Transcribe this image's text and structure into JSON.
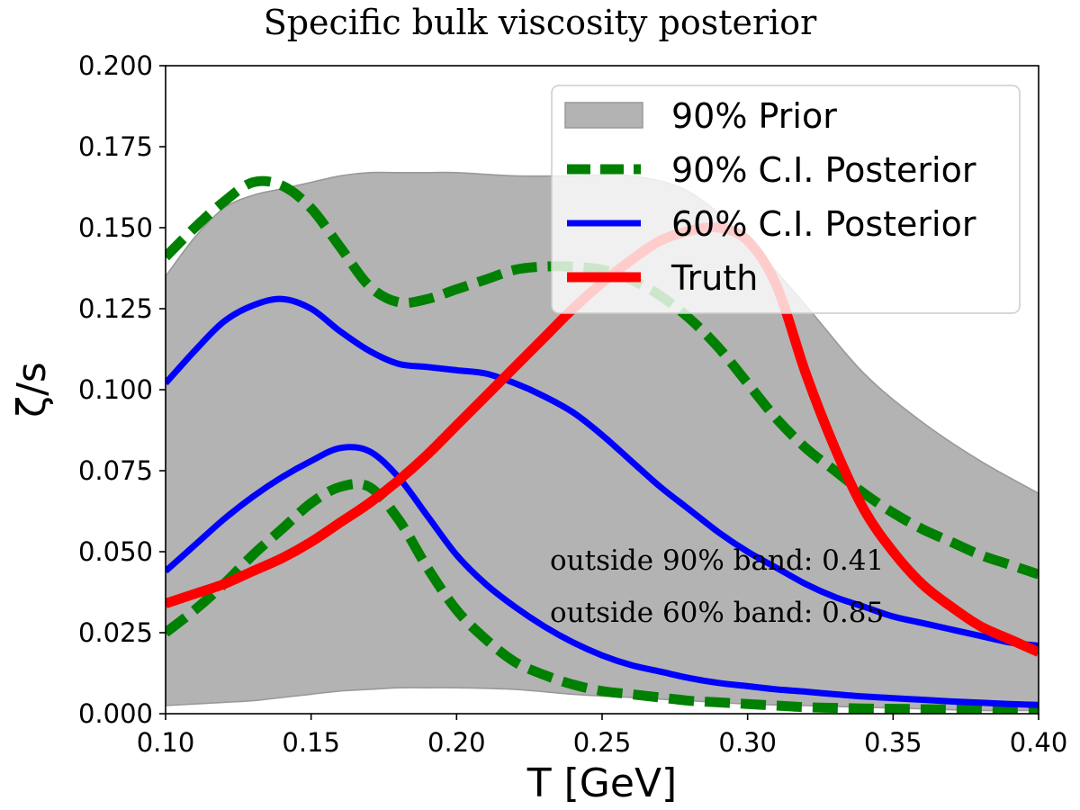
{
  "chart_data": {
    "type": "line",
    "title": "Specific bulk viscosity posterior",
    "xlabel": "T [GeV]",
    "ylabel": "ζ/s",
    "xlim": [
      0.1,
      0.4
    ],
    "ylim": [
      0.0,
      0.2
    ],
    "x_ticks": [
      "0.10",
      "0.15",
      "0.20",
      "0.25",
      "0.30",
      "0.35",
      "0.40"
    ],
    "y_ticks": [
      "0.000",
      "0.025",
      "0.050",
      "0.075",
      "0.100",
      "0.125",
      "0.150",
      "0.175",
      "0.200"
    ],
    "grid": false,
    "legend_position": "top-right",
    "legend": [
      "90% Prior",
      "90% C.I. Posterior",
      "60% C.I. Posterior",
      "Truth"
    ],
    "colors": {
      "prior_fill": "#b3b3b3",
      "prior_edge": "#999999",
      "ci90": "#008000",
      "ci60": "#0000ff",
      "truth": "#ff0000"
    },
    "prior_band": {
      "x": [
        0.1,
        0.11,
        0.12,
        0.13,
        0.14,
        0.15,
        0.16,
        0.17,
        0.18,
        0.19,
        0.2,
        0.22,
        0.24,
        0.26,
        0.28,
        0.3,
        0.32,
        0.34,
        0.36,
        0.38,
        0.4
      ],
      "upper": [
        0.135,
        0.147,
        0.156,
        0.16,
        0.162,
        0.164,
        0.166,
        0.167,
        0.167,
        0.167,
        0.167,
        0.166,
        0.166,
        0.166,
        0.161,
        0.146,
        0.126,
        0.105,
        0.09,
        0.078,
        0.068
      ],
      "lower": [
        0.0025,
        0.003,
        0.0035,
        0.004,
        0.005,
        0.006,
        0.007,
        0.0075,
        0.008,
        0.008,
        0.008,
        0.0075,
        0.006,
        0.005,
        0.004,
        0.003,
        0.0025,
        0.002,
        0.0015,
        0.001,
        0.001
      ]
    },
    "series": [
      {
        "name": "90% C.I. Posterior",
        "role": "ci90_upper",
        "x": [
          0.1,
          0.11,
          0.12,
          0.13,
          0.14,
          0.15,
          0.16,
          0.17,
          0.18,
          0.19,
          0.2,
          0.21,
          0.22,
          0.23,
          0.24,
          0.25,
          0.26,
          0.27,
          0.28,
          0.29,
          0.3,
          0.31,
          0.32,
          0.33,
          0.34,
          0.35,
          0.36,
          0.37,
          0.38,
          0.39,
          0.4
        ],
        "y": [
          0.141,
          0.15,
          0.158,
          0.164,
          0.163,
          0.156,
          0.144,
          0.132,
          0.127,
          0.128,
          0.131,
          0.134,
          0.137,
          0.138,
          0.138,
          0.137,
          0.134,
          0.129,
          0.122,
          0.113,
          0.102,
          0.091,
          0.082,
          0.075,
          0.068,
          0.062,
          0.057,
          0.053,
          0.049,
          0.046,
          0.043
        ]
      },
      {
        "name": "",
        "role": "ci90_lower",
        "x": [
          0.1,
          0.11,
          0.12,
          0.13,
          0.14,
          0.15,
          0.16,
          0.17,
          0.18,
          0.19,
          0.2,
          0.21,
          0.22,
          0.23,
          0.24,
          0.25,
          0.26,
          0.27,
          0.28,
          0.29,
          0.3,
          0.31,
          0.32,
          0.33,
          0.34,
          0.35,
          0.36,
          0.37,
          0.38,
          0.39,
          0.4
        ],
        "y": [
          0.025,
          0.032,
          0.04,
          0.049,
          0.057,
          0.065,
          0.07,
          0.07,
          0.06,
          0.045,
          0.032,
          0.023,
          0.016,
          0.012,
          0.009,
          0.007,
          0.006,
          0.005,
          0.004,
          0.0035,
          0.003,
          0.0025,
          0.002,
          0.0018,
          0.0016,
          0.0015,
          0.0014,
          0.0013,
          0.0012,
          0.0011,
          0.001
        ]
      },
      {
        "name": "60% C.I. Posterior",
        "role": "ci60_upper",
        "x": [
          0.1,
          0.11,
          0.12,
          0.13,
          0.14,
          0.15,
          0.16,
          0.17,
          0.18,
          0.19,
          0.2,
          0.21,
          0.22,
          0.23,
          0.24,
          0.25,
          0.26,
          0.27,
          0.28,
          0.29,
          0.3,
          0.31,
          0.32,
          0.33,
          0.34,
          0.35,
          0.36,
          0.37,
          0.38,
          0.39,
          0.4
        ],
        "y": [
          0.102,
          0.112,
          0.121,
          0.126,
          0.128,
          0.125,
          0.118,
          0.112,
          0.108,
          0.107,
          0.106,
          0.105,
          0.102,
          0.098,
          0.093,
          0.086,
          0.078,
          0.07,
          0.063,
          0.056,
          0.05,
          0.045,
          0.04,
          0.036,
          0.033,
          0.03,
          0.028,
          0.026,
          0.024,
          0.022,
          0.021
        ]
      },
      {
        "name": "",
        "role": "ci60_lower",
        "x": [
          0.1,
          0.11,
          0.12,
          0.13,
          0.14,
          0.15,
          0.16,
          0.17,
          0.18,
          0.19,
          0.2,
          0.21,
          0.22,
          0.23,
          0.24,
          0.25,
          0.26,
          0.27,
          0.28,
          0.29,
          0.3,
          0.31,
          0.32,
          0.33,
          0.34,
          0.35,
          0.36,
          0.37,
          0.38,
          0.39,
          0.4
        ],
        "y": [
          0.044,
          0.052,
          0.06,
          0.067,
          0.073,
          0.078,
          0.082,
          0.081,
          0.073,
          0.061,
          0.049,
          0.04,
          0.033,
          0.027,
          0.022,
          0.018,
          0.015,
          0.013,
          0.011,
          0.0095,
          0.0085,
          0.0075,
          0.0068,
          0.006,
          0.0053,
          0.0048,
          0.0043,
          0.0038,
          0.0034,
          0.003,
          0.0027
        ]
      },
      {
        "name": "Truth",
        "role": "truth",
        "x": [
          0.1,
          0.11,
          0.12,
          0.13,
          0.14,
          0.15,
          0.16,
          0.17,
          0.18,
          0.19,
          0.2,
          0.21,
          0.22,
          0.23,
          0.24,
          0.25,
          0.26,
          0.27,
          0.28,
          0.29,
          0.3,
          0.31,
          0.32,
          0.33,
          0.34,
          0.35,
          0.36,
          0.37,
          0.38,
          0.39,
          0.4
        ],
        "y": [
          0.034,
          0.037,
          0.04,
          0.044,
          0.048,
          0.053,
          0.059,
          0.065,
          0.072,
          0.08,
          0.089,
          0.098,
          0.107,
          0.116,
          0.125,
          0.133,
          0.14,
          0.146,
          0.149,
          0.15,
          0.146,
          0.132,
          0.105,
          0.082,
          0.063,
          0.05,
          0.04,
          0.033,
          0.027,
          0.023,
          0.019
        ]
      }
    ],
    "annotations": [
      "outside 90% band: 0.41",
      "outside 60% band: 0.85"
    ]
  }
}
